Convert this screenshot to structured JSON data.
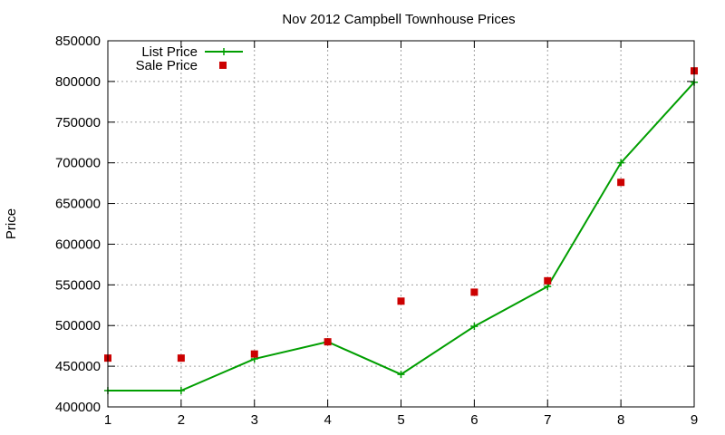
{
  "chart_data": {
    "type": "line",
    "title": "Nov 2012 Campbell Townhouse Prices",
    "xlabel": "",
    "ylabel": "Price",
    "x": [
      1,
      2,
      3,
      4,
      5,
      6,
      7,
      8,
      9
    ],
    "xlim": [
      1,
      9
    ],
    "ylim": [
      400000,
      850000
    ],
    "xticks": [
      "1",
      "2",
      "3",
      "4",
      "5",
      "6",
      "7",
      "8",
      "9"
    ],
    "yticks": [
      "400000",
      "450000",
      "500000",
      "550000",
      "600000",
      "650000",
      "700000",
      "750000",
      "800000",
      "850000"
    ],
    "grid": true,
    "legend_position": "top-left",
    "series": [
      {
        "name": "List Price",
        "type": "linespoints",
        "marker": "plus",
        "color": "#009e00",
        "values": [
          420000,
          420000,
          459000,
          480000,
          440000,
          499000,
          548000,
          700000,
          799000
        ]
      },
      {
        "name": "Sale Price",
        "type": "points",
        "marker": "square",
        "color": "#cc0000",
        "values": [
          460000,
          460000,
          465000,
          480000,
          530000,
          541000,
          555000,
          676000,
          813000
        ]
      }
    ]
  }
}
